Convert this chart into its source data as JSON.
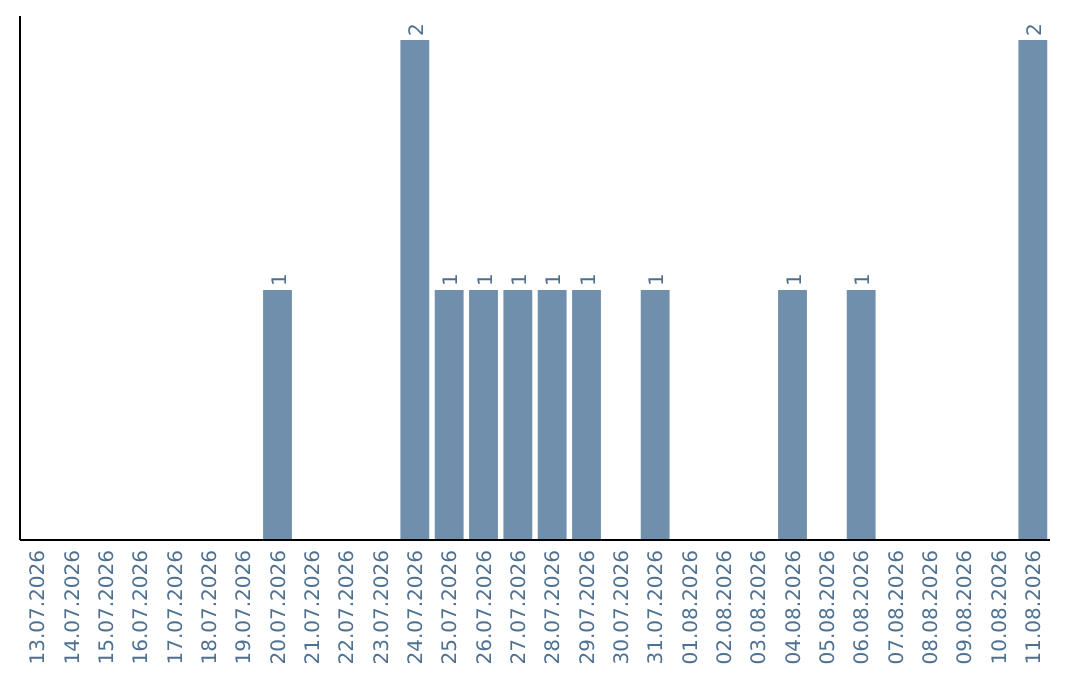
{
  "chart_data": {
    "type": "bar",
    "color": "#6f8fad",
    "categories": [
      "13.07.2026",
      "14.07.2026",
      "15.07.2026",
      "16.07.2026",
      "17.07.2026",
      "18.07.2026",
      "19.07.2026",
      "20.07.2026",
      "21.07.2026",
      "22.07.2026",
      "23.07.2026",
      "24.07.2026",
      "25.07.2026",
      "26.07.2026",
      "27.07.2026",
      "28.07.2026",
      "29.07.2026",
      "30.07.2026",
      "31.07.2026",
      "01.08.2026",
      "02.08.2026",
      "03.08.2026",
      "04.08.2026",
      "05.08.2026",
      "06.08.2026",
      "07.08.2026",
      "08.08.2026",
      "09.08.2026",
      "10.08.2026",
      "11.08.2026"
    ],
    "values": [
      0,
      0,
      0,
      0,
      0,
      0,
      0,
      1,
      0,
      0,
      0,
      2,
      1,
      1,
      1,
      1,
      1,
      0,
      1,
      0,
      0,
      0,
      1,
      0,
      1,
      0,
      0,
      0,
      0,
      2
    ],
    "value_labels": [
      null,
      null,
      null,
      null,
      null,
      null,
      null,
      "1",
      null,
      null,
      null,
      "2",
      "1",
      "1",
      "1",
      "1",
      "1",
      null,
      "1",
      null,
      null,
      null,
      "1",
      null,
      "1",
      null,
      null,
      null,
      null,
      "2"
    ],
    "data_labels": false
  }
}
